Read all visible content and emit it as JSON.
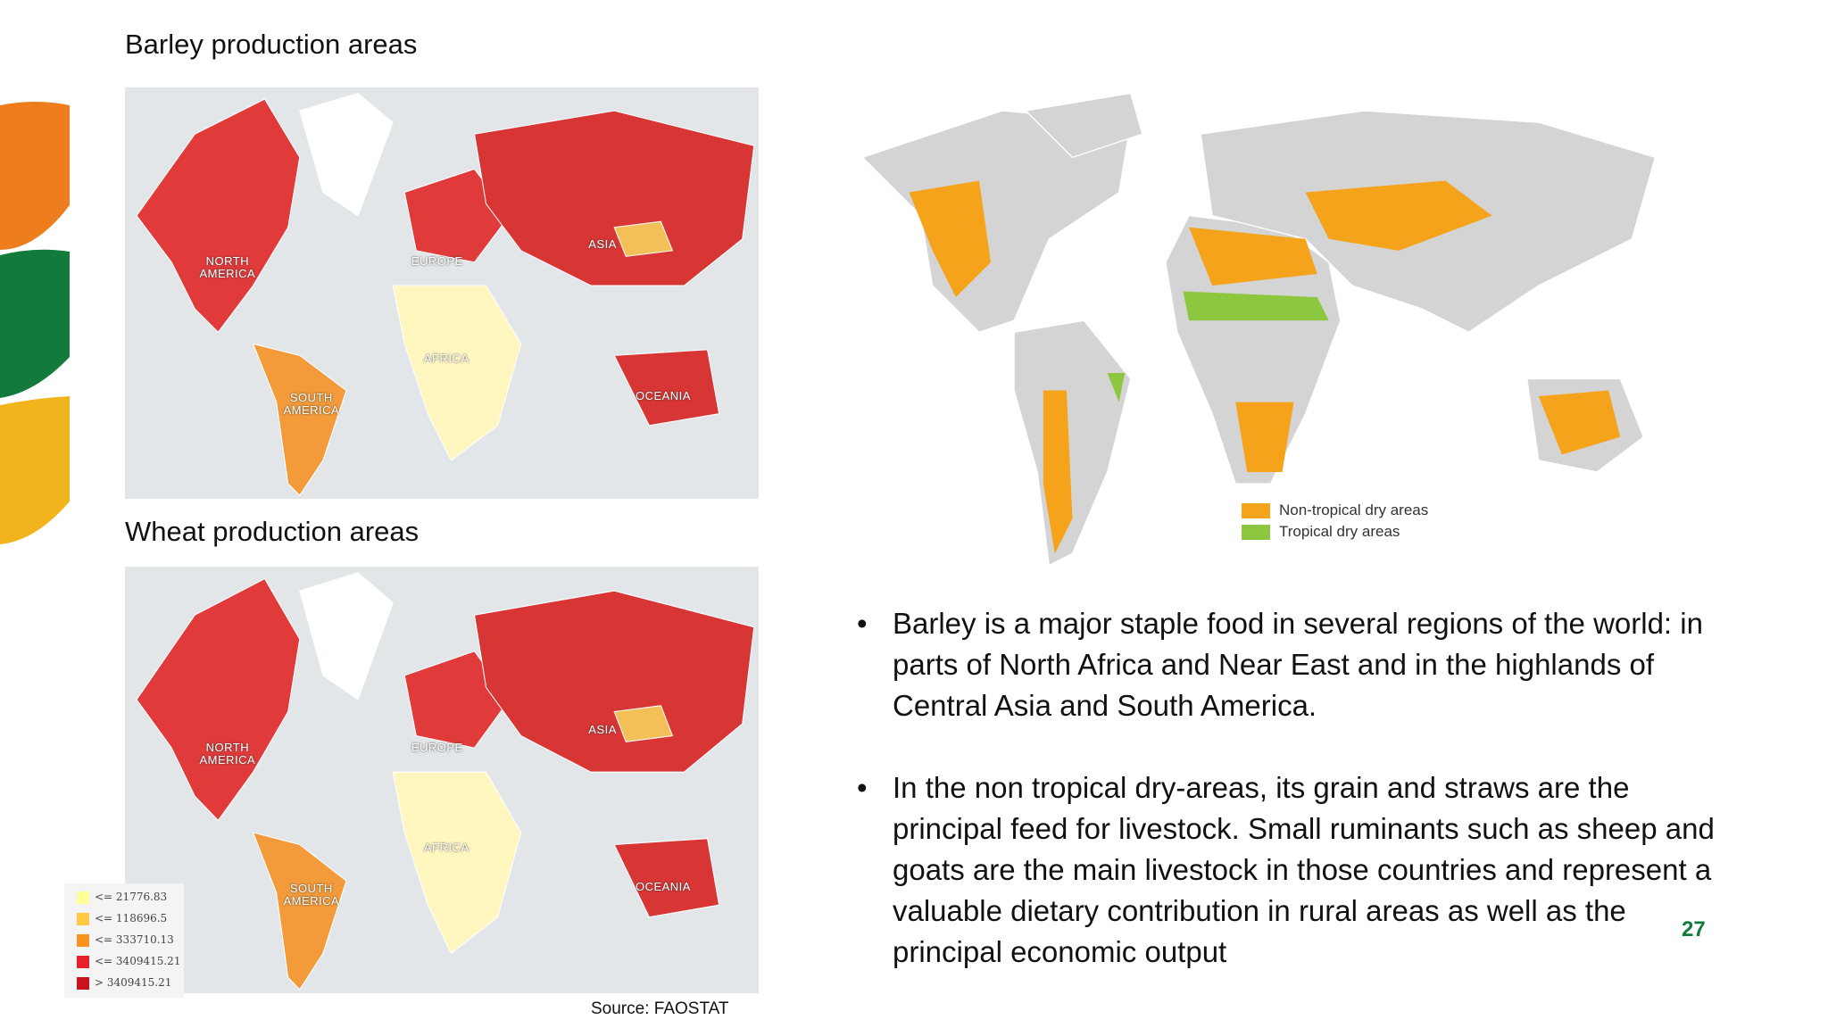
{
  "maps": [
    {
      "title": "Barley  production areas",
      "regions": [
        "NORTH AMERICA",
        "EUROPE",
        "ASIA",
        "AFRICA",
        "SOUTH AMERICA",
        "OCEANIA"
      ]
    },
    {
      "title": "Wheat  production areas",
      "regions": [
        "NORTH AMERICA",
        "EUROPE",
        "ASIA",
        "AFRICA",
        "SOUTH AMERICA",
        "OCEANIA"
      ]
    }
  ],
  "legend": [
    "<= 21776.83",
    "<= 118696.5",
    "<= 333710.13",
    "<= 3409415.21",
    "> 3409415.21"
  ],
  "dry_areas_map": {
    "legend": [
      "Non-tropical dry areas",
      "Tropical dry areas"
    ]
  },
  "bullets": [
    "Barley is a major staple food in several regions of the world: in parts of North Africa and Near East and in the highlands of Central Asia and South America.",
    "In the non tropical dry-areas, its grain and straws are the principal feed for livestock. Small ruminants such as sheep and goats are the main livestock in those countries and represent a valuable dietary contribution in rural areas as well as the principal economic output"
  ],
  "page_number": "27",
  "source": "Source: FAOSTAT"
}
